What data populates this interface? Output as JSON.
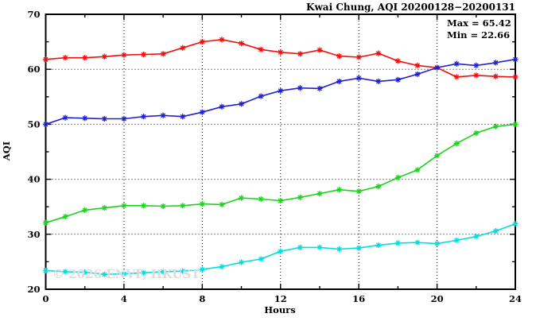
{
  "title": "Kwai Chung, AQI 20200128−20200131",
  "annotations": {
    "max_label": "Max = 65.42",
    "min_label": "Min = 22.66"
  },
  "watermark": "© 2026 ENVF, HKUST",
  "chart_data": {
    "type": "line",
    "title": "Kwai Chung, AQI 20200128−20200131",
    "xlabel": "Hours",
    "ylabel": "AQI",
    "xlim": [
      0,
      24
    ],
    "ylim": [
      20,
      70
    ],
    "grid": true,
    "legend_position": "none",
    "marker": "asterisk",
    "xticks_major": [
      0,
      4,
      8,
      12,
      16,
      20,
      24
    ],
    "xticks_minor": [
      2,
      6,
      10,
      14,
      18,
      22
    ],
    "yticks_major": [
      20,
      30,
      40,
      50,
      60,
      70
    ],
    "yticks_minor": [
      25,
      35,
      45,
      55,
      65
    ],
    "grid_x": [
      4,
      8,
      12,
      16,
      20
    ],
    "grid_y": [
      30,
      40,
      50,
      60
    ],
    "stats": {
      "max": 65.42,
      "min": 22.66
    },
    "x": [
      0,
      1,
      2,
      3,
      4,
      5,
      6,
      7,
      8,
      9,
      10,
      11,
      12,
      13,
      14,
      15,
      16,
      17,
      18,
      19,
      20,
      21,
      22,
      23,
      24
    ],
    "series": [
      {
        "name": "series-red",
        "color": "#ee1111",
        "values": [
          61.8,
          62.1,
          62.1,
          62.3,
          62.6,
          62.7,
          62.8,
          63.9,
          65.0,
          65.4,
          64.7,
          63.6,
          63.1,
          62.8,
          63.5,
          62.4,
          62.2,
          62.9,
          61.5,
          60.7,
          60.3,
          58.6,
          58.9,
          58.7,
          58.6
        ]
      },
      {
        "name": "series-blue",
        "color": "#2222cd",
        "values": [
          50.0,
          51.2,
          51.1,
          51.0,
          51.0,
          51.4,
          51.6,
          51.4,
          52.2,
          53.2,
          53.7,
          55.1,
          56.1,
          56.6,
          56.5,
          57.8,
          58.4,
          57.8,
          58.1,
          59.1,
          60.3,
          61.0,
          60.7,
          61.2,
          61.8
        ]
      },
      {
        "name": "series-green",
        "color": "#1dd31d",
        "values": [
          32.1,
          33.2,
          34.4,
          34.8,
          35.2,
          35.2,
          35.1,
          35.2,
          35.5,
          35.4,
          36.6,
          36.4,
          36.1,
          36.7,
          37.4,
          38.1,
          37.8,
          38.7,
          40.3,
          41.7,
          44.3,
          46.5,
          48.4,
          49.6,
          50.0
        ]
      },
      {
        "name": "series-cyan",
        "color": "#00dede",
        "values": [
          23.4,
          23.2,
          23.1,
          22.7,
          22.8,
          23.0,
          23.2,
          23.3,
          23.6,
          24.1,
          24.9,
          25.5,
          26.9,
          27.6,
          27.6,
          27.3,
          27.5,
          28.0,
          28.4,
          28.5,
          28.3,
          28.9,
          29.6,
          30.6,
          31.9
        ]
      }
    ]
  }
}
